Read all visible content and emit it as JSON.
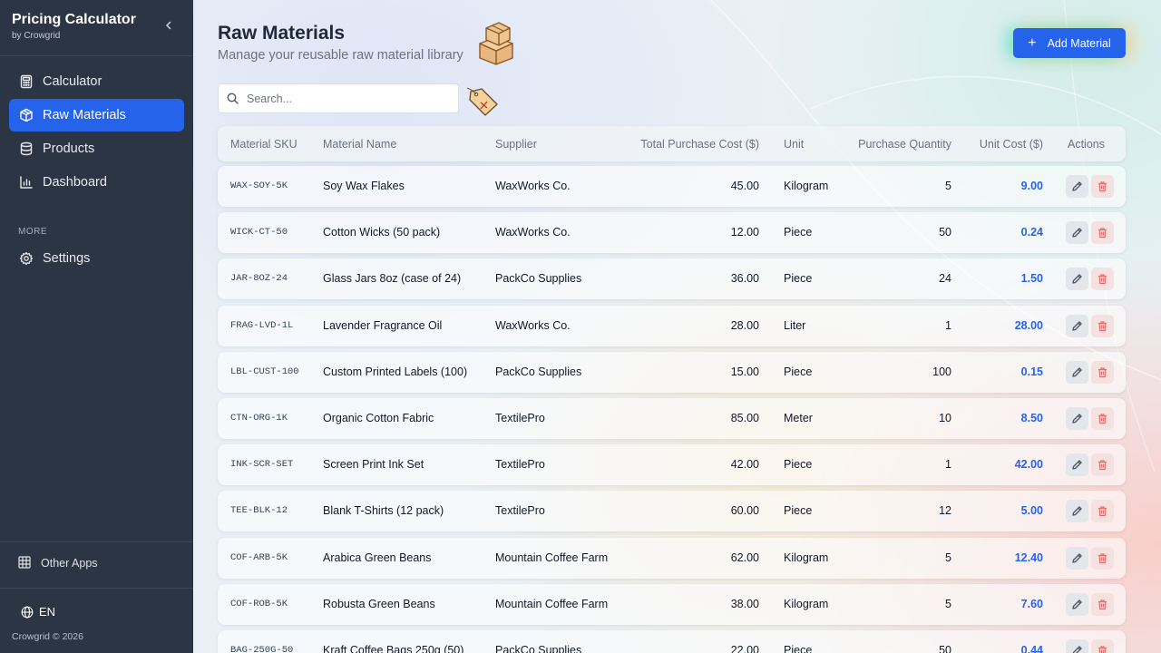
{
  "sidebar": {
    "brand_title": "Pricing Calculator",
    "brand_sub": "by Crowgrid",
    "items": [
      {
        "label": "Calculator",
        "icon": "calculator-icon",
        "active": false
      },
      {
        "label": "Raw Materials",
        "icon": "box-icon",
        "active": true
      },
      {
        "label": "Products",
        "icon": "database-icon",
        "active": false
      },
      {
        "label": "Dashboard",
        "icon": "chart-icon",
        "active": false
      }
    ],
    "section_label": "MORE",
    "settings_label": "Settings",
    "other_apps_label": "Other Apps",
    "language": "EN",
    "copyright": "Crowgrid © 2026"
  },
  "header": {
    "title": "Raw Materials",
    "subtitle": "Manage your reusable raw material library",
    "add_label": "Add Material"
  },
  "search": {
    "placeholder": "Search..."
  },
  "table": {
    "columns": [
      "Material SKU",
      "Material Name",
      "Supplier",
      "Total Purchase Cost ($)",
      "Unit",
      "Purchase Quantity",
      "Unit Cost ($)",
      "Actions"
    ],
    "rows": [
      {
        "sku": "WAX-SOY-5K",
        "name": "Soy Wax Flakes",
        "supplier": "WaxWorks Co.",
        "total": "45.00",
        "unit": "Kilogram",
        "qty": "5",
        "cost": "9.00"
      },
      {
        "sku": "WICK-CT-50",
        "name": "Cotton Wicks (50 pack)",
        "supplier": "WaxWorks Co.",
        "total": "12.00",
        "unit": "Piece",
        "qty": "50",
        "cost": "0.24"
      },
      {
        "sku": "JAR-8OZ-24",
        "name": "Glass Jars 8oz (case of 24)",
        "supplier": "PackCo Supplies",
        "total": "36.00",
        "unit": "Piece",
        "qty": "24",
        "cost": "1.50"
      },
      {
        "sku": "FRAG-LVD-1L",
        "name": "Lavender Fragrance Oil",
        "supplier": "WaxWorks Co.",
        "total": "28.00",
        "unit": "Liter",
        "qty": "1",
        "cost": "28.00"
      },
      {
        "sku": "LBL-CUST-100",
        "name": "Custom Printed Labels (100)",
        "supplier": "PackCo Supplies",
        "total": "15.00",
        "unit": "Piece",
        "qty": "100",
        "cost": "0.15"
      },
      {
        "sku": "CTN-ORG-1K",
        "name": "Organic Cotton Fabric",
        "supplier": "TextilePro",
        "total": "85.00",
        "unit": "Meter",
        "qty": "10",
        "cost": "8.50"
      },
      {
        "sku": "INK-SCR-SET",
        "name": "Screen Print Ink Set",
        "supplier": "TextilePro",
        "total": "42.00",
        "unit": "Piece",
        "qty": "1",
        "cost": "42.00"
      },
      {
        "sku": "TEE-BLK-12",
        "name": "Blank T-Shirts (12 pack)",
        "supplier": "TextilePro",
        "total": "60.00",
        "unit": "Piece",
        "qty": "12",
        "cost": "5.00"
      },
      {
        "sku": "COF-ARB-5K",
        "name": "Arabica Green Beans",
        "supplier": "Mountain Coffee Farm",
        "total": "62.00",
        "unit": "Kilogram",
        "qty": "5",
        "cost": "12.40"
      },
      {
        "sku": "COF-ROB-5K",
        "name": "Robusta Green Beans",
        "supplier": "Mountain Coffee Farm",
        "total": "38.00",
        "unit": "Kilogram",
        "qty": "5",
        "cost": "7.60"
      },
      {
        "sku": "BAG-250G-50",
        "name": "Kraft Coffee Bags 250g (50)",
        "supplier": "PackCo Supplies",
        "total": "22.00",
        "unit": "Piece",
        "qty": "50",
        "cost": "0.44"
      }
    ]
  },
  "colors": {
    "accent": "#2563eb",
    "sidebar_bg": "#2b3544",
    "delete": "#e26b6b"
  }
}
